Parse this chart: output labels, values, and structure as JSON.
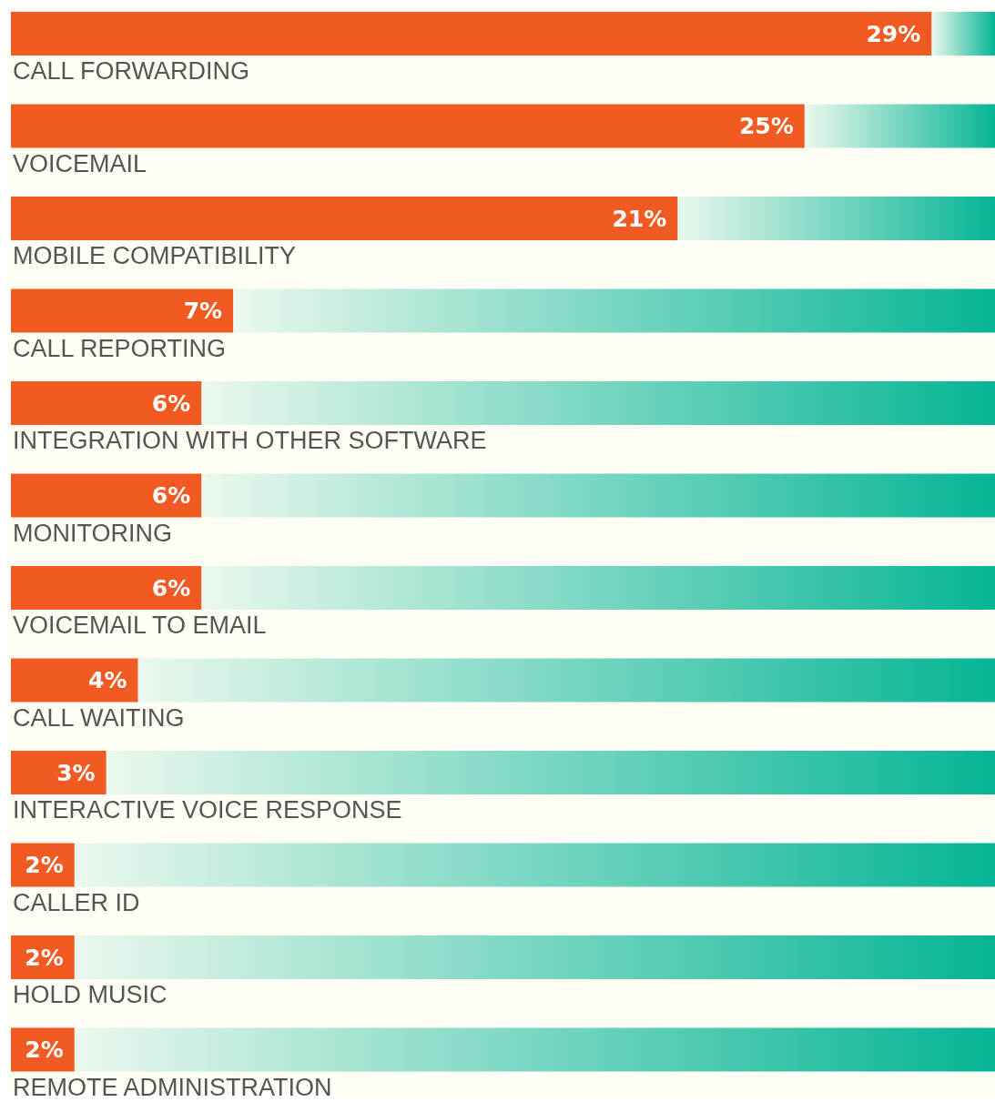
{
  "chart_data": {
    "type": "bar",
    "orientation": "horizontal",
    "stacked": true,
    "categories": [
      "CALL FORWARDING",
      "VOICEMAIL",
      "MOBILE COMPATIBILITY",
      "CALL REPORTING",
      "INTEGRATION WITH OTHER SOFTWARE",
      "MONITORING",
      "VOICEMAIL TO EMAIL",
      "CALL WAITING",
      "INTERACTIVE VOICE RESPONSE",
      "CALLER ID",
      "HOLD MUSIC",
      "REMOTE ADMINISTRATION"
    ],
    "series": [
      {
        "color": "#f15a22",
        "values": [
          29,
          25,
          21,
          7,
          6,
          6,
          6,
          4,
          3,
          2,
          2,
          2
        ],
        "value_labels": [
          "29%",
          "25%",
          "21%",
          "7%",
          "6%",
          "6%",
          "6%",
          "4%",
          "3%",
          "2%",
          "2%",
          "2%"
        ]
      },
      {
        "color": "#05b595",
        "values": [
          2,
          6,
          10,
          24,
          25,
          25,
          25,
          27,
          28,
          29,
          29,
          29
        ]
      }
    ],
    "xlim": [
      0,
      31
    ],
    "tick_labels": false
  }
}
